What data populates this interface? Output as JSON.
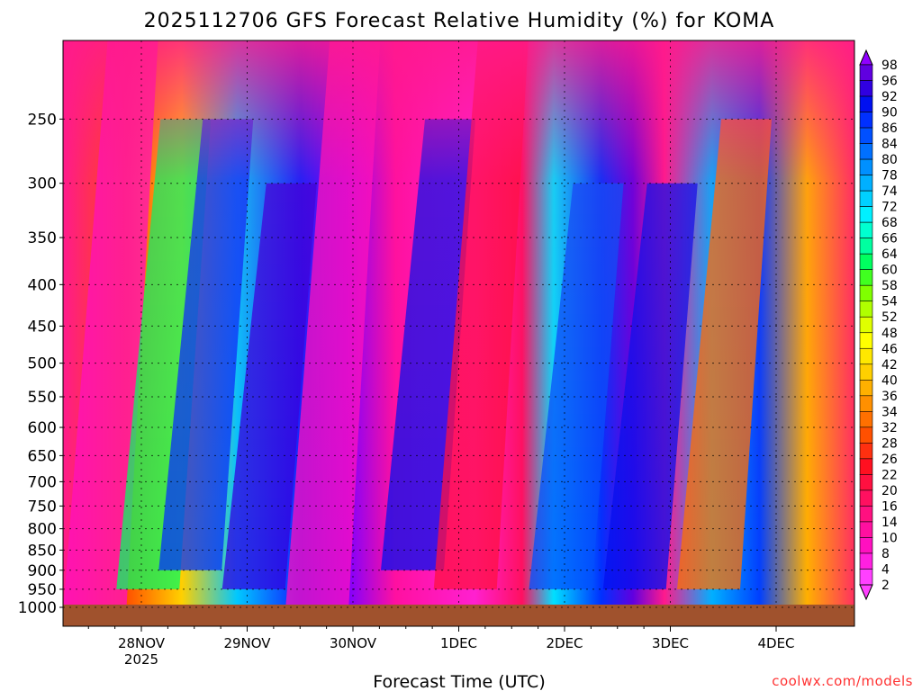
{
  "chart_data": {
    "type": "heatmap",
    "title": "2025112706 GFS Forecast Relative Humidity (%) for KOMA",
    "xlabel": "Forecast Time (UTC)",
    "ylabel": "",
    "x_ticks": [
      "28NOV",
      "29NOV",
      "30NOV",
      "1DEC",
      "2DEC",
      "3DEC",
      "4DEC"
    ],
    "x_sub_label": "2025",
    "y_ticks": [
      250,
      300,
      350,
      400,
      450,
      500,
      550,
      600,
      650,
      700,
      750,
      800,
      850,
      900,
      950,
      1000
    ],
    "ylim": [
      1000,
      200
    ],
    "colorbar_levels": [
      2,
      4,
      8,
      10,
      14,
      16,
      20,
      22,
      26,
      28,
      32,
      34,
      36,
      40,
      42,
      46,
      48,
      52,
      54,
      58,
      60,
      64,
      66,
      68,
      72,
      74,
      78,
      80,
      84,
      86,
      90,
      92,
      96,
      98
    ],
    "colorbar_colors": [
      "#ff40ff",
      "#ff20e0",
      "#ff10c0",
      "#ff10a0",
      "#ff1080",
      "#ff1060",
      "#ff1040",
      "#ff1020",
      "#ff3010",
      "#ff5000",
      "#ff7000",
      "#ff9000",
      "#ffb000",
      "#ffd000",
      "#ffe800",
      "#ffff00",
      "#e0ff00",
      "#b0ff00",
      "#80ff00",
      "#40ff20",
      "#00ff60",
      "#00ffa0",
      "#00ffd0",
      "#00f0ff",
      "#00d0ff",
      "#00b0ff",
      "#0090ff",
      "#0070ff",
      "#0050ff",
      "#0030ff",
      "#0010f0",
      "#3000e0",
      "#6000e0",
      "#9000ff"
    ],
    "humidity_bands": [
      {
        "day": 27.8,
        "p_top": 200,
        "p_bottom": 1000,
        "rh": 6
      },
      {
        "day": 28.3,
        "p_top": 250,
        "p_bottom": 950,
        "rh": 60
      },
      {
        "day": 28.7,
        "p_top": 250,
        "p_bottom": 900,
        "rh": 86
      },
      {
        "day": 29.3,
        "p_top": 300,
        "p_bottom": 950,
        "rh": 92
      },
      {
        "day": 29.9,
        "p_top": 200,
        "p_bottom": 1000,
        "rh": 8
      },
      {
        "day": 30.8,
        "p_top": 250,
        "p_bottom": 900,
        "rh": 88
      },
      {
        "day": 31.3,
        "p_top": 200,
        "p_bottom": 950,
        "rh": 20
      },
      {
        "day": 32.2,
        "p_top": 300,
        "p_bottom": 950,
        "rh": 84
      },
      {
        "day": 32.9,
        "p_top": 300,
        "p_bottom": 950,
        "rh": 88
      },
      {
        "day": 33.6,
        "p_top": 250,
        "p_bottom": 950,
        "rh": 30
      }
    ]
  },
  "credit": "coolwx.com/models"
}
